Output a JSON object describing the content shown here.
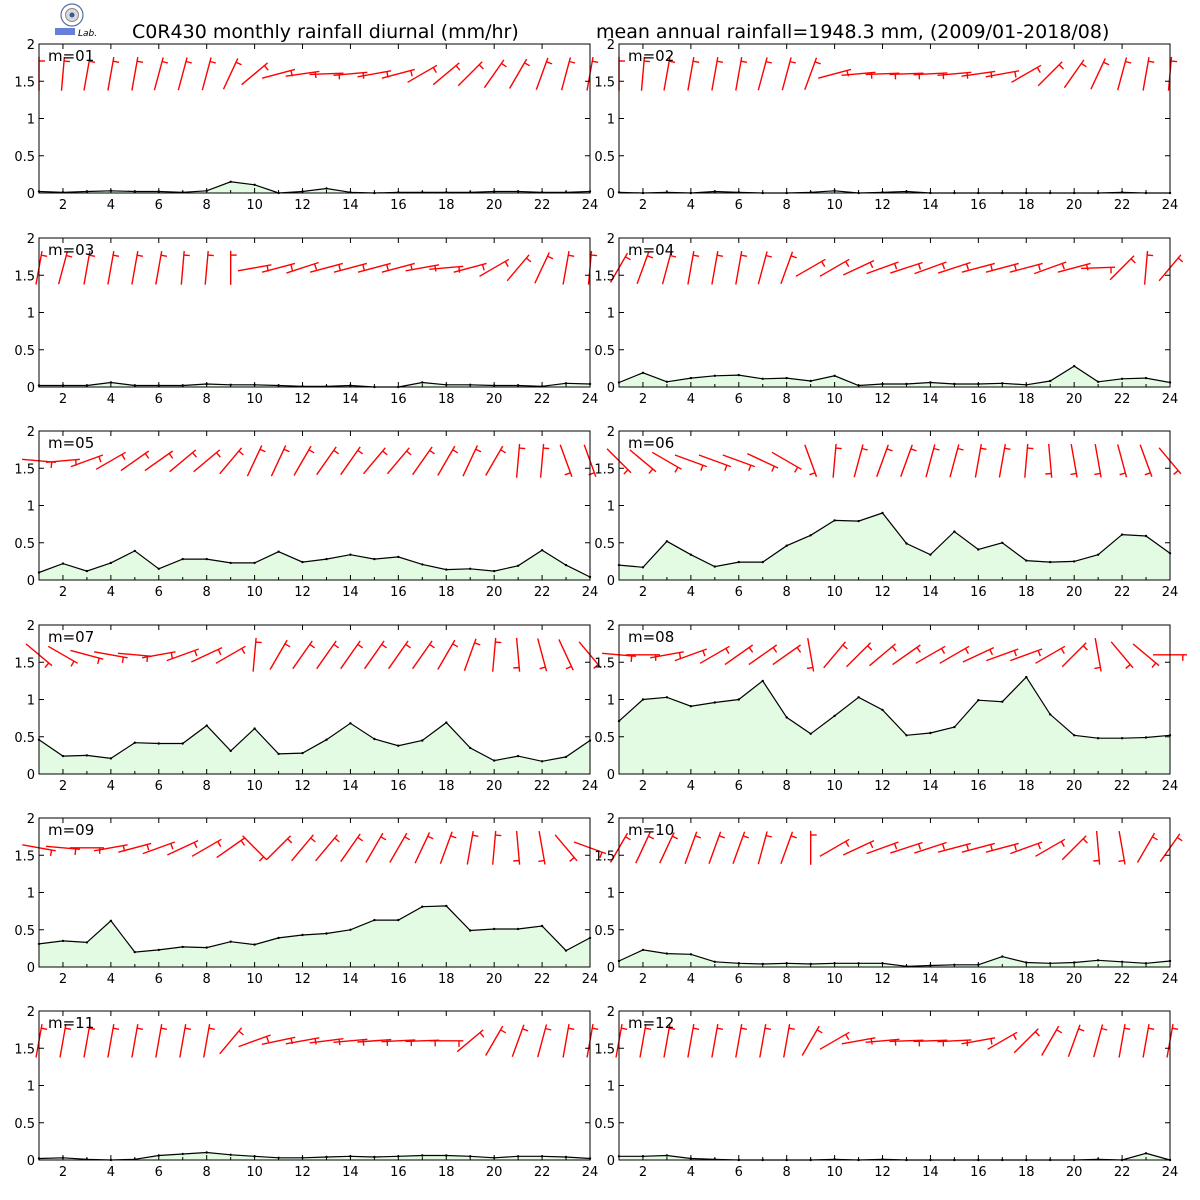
{
  "header": {
    "title_left": "C0R430 monthly rainfall diurnal (mm/hr)",
    "title_right": "mean annual rainfall=1948.3 mm, (2009/01-2018/08)"
  },
  "logo": {
    "name": "emblem-logo",
    "text": "Lab."
  },
  "colors": {
    "area_fill": "#e2fbe2",
    "line": "#000000",
    "wind_barbs": "#ff0000"
  },
  "chart_data": [
    {
      "type": "area",
      "label": "m=01",
      "xlim": [
        1,
        24
      ],
      "ylim": [
        0,
        2
      ],
      "x_ticks": [
        "2",
        "4",
        "6",
        "8",
        "10",
        "12",
        "14",
        "16",
        "18",
        "20",
        "22",
        "24"
      ],
      "y_ticks": [
        "0",
        "0.5",
        "1",
        "1.5",
        "2"
      ],
      "x": [
        1,
        2,
        3,
        4,
        5,
        6,
        7,
        8,
        9,
        10,
        11,
        12,
        13,
        14,
        15,
        16,
        17,
        18,
        19,
        20,
        21,
        22,
        23,
        24
      ],
      "values": [
        0.02,
        0.01,
        0.02,
        0.03,
        0.02,
        0.02,
        0.01,
        0.03,
        0.15,
        0.11,
        0.0,
        0.02,
        0.06,
        0.01,
        0.0,
        0.01,
        0.01,
        0.01,
        0.01,
        0.02,
        0.02,
        0.01,
        0.01,
        0.02
      ],
      "wind_dir": [
        0,
        5,
        10,
        10,
        10,
        15,
        15,
        15,
        25,
        50,
        75,
        82,
        88,
        85,
        80,
        75,
        60,
        50,
        45,
        35,
        30,
        20,
        15,
        10
      ]
    },
    {
      "type": "area",
      "label": "m=02",
      "xlim": [
        1,
        24
      ],
      "ylim": [
        0,
        2
      ],
      "x_ticks": [
        "2",
        "4",
        "6",
        "8",
        "10",
        "12",
        "14",
        "16",
        "18",
        "20",
        "22",
        "24"
      ],
      "y_ticks": [
        "0",
        "0.5",
        "1",
        "1.5",
        "2"
      ],
      "x": [
        1,
        2,
        3,
        4,
        5,
        6,
        7,
        8,
        9,
        10,
        11,
        12,
        13,
        14,
        15,
        16,
        17,
        18,
        19,
        20,
        21,
        22,
        23,
        24
      ],
      "values": [
        0.01,
        0.0,
        0.01,
        0.0,
        0.02,
        0.01,
        0.0,
        0.0,
        0.01,
        0.03,
        0.0,
        0.01,
        0.02,
        0.0,
        0.0,
        0.0,
        0.0,
        0.0,
        0.0,
        0.0,
        0.0,
        0.01,
        0.0,
        0.0
      ],
      "wind_dir": [
        0,
        5,
        10,
        10,
        10,
        10,
        15,
        15,
        20,
        75,
        85,
        88,
        88,
        87,
        85,
        82,
        80,
        60,
        45,
        35,
        25,
        15,
        10,
        5
      ]
    },
    {
      "type": "area",
      "label": "m=03",
      "xlim": [
        1,
        24
      ],
      "ylim": [
        0,
        2
      ],
      "x_ticks": [
        "2",
        "4",
        "6",
        "8",
        "10",
        "12",
        "14",
        "16",
        "18",
        "20",
        "22",
        "24"
      ],
      "y_ticks": [
        "0",
        "0.5",
        "1",
        "1.5",
        "2"
      ],
      "x": [
        1,
        2,
        3,
        4,
        5,
        6,
        7,
        8,
        9,
        10,
        11,
        12,
        13,
        14,
        15,
        16,
        17,
        18,
        19,
        20,
        21,
        22,
        23,
        24
      ],
      "values": [
        0.02,
        0.02,
        0.02,
        0.06,
        0.02,
        0.02,
        0.02,
        0.04,
        0.03,
        0.03,
        0.02,
        0.01,
        0.01,
        0.02,
        0.0,
        0.0,
        0.06,
        0.03,
        0.03,
        0.02,
        0.02,
        0.01,
        0.05,
        0.04
      ],
      "wind_dir": [
        10,
        15,
        10,
        10,
        10,
        10,
        5,
        5,
        0,
        80,
        75,
        72,
        75,
        75,
        75,
        75,
        80,
        85,
        75,
        60,
        40,
        25,
        10,
        5
      ]
    },
    {
      "type": "area",
      "label": "m=04",
      "xlim": [
        1,
        24
      ],
      "ylim": [
        0,
        2
      ],
      "x_ticks": [
        "2",
        "4",
        "6",
        "8",
        "10",
        "12",
        "14",
        "16",
        "18",
        "20",
        "22",
        "24"
      ],
      "y_ticks": [
        "0",
        "0.5",
        "1",
        "1.5",
        "2"
      ],
      "x": [
        1,
        2,
        3,
        4,
        5,
        6,
        7,
        8,
        9,
        10,
        11,
        12,
        13,
        14,
        15,
        16,
        17,
        18,
        19,
        20,
        21,
        22,
        23,
        24
      ],
      "values": [
        0.06,
        0.19,
        0.07,
        0.12,
        0.15,
        0.16,
        0.11,
        0.12,
        0.08,
        0.15,
        0.02,
        0.04,
        0.04,
        0.06,
        0.04,
        0.04,
        0.05,
        0.03,
        0.08,
        0.28,
        0.07,
        0.11,
        0.12,
        0.06
      ],
      "wind_dir": [
        30,
        20,
        15,
        10,
        10,
        10,
        15,
        20,
        60,
        60,
        65,
        70,
        72,
        70,
        72,
        75,
        75,
        75,
        70,
        75,
        88,
        45,
        5,
        40
      ]
    },
    {
      "type": "area",
      "label": "m=05",
      "xlim": [
        1,
        24
      ],
      "ylim": [
        0,
        2
      ],
      "x_ticks": [
        "2",
        "4",
        "6",
        "8",
        "10",
        "12",
        "14",
        "16",
        "18",
        "20",
        "22",
        "24"
      ],
      "y_ticks": [
        "0",
        "0.5",
        "1",
        "1.5",
        "2"
      ],
      "x": [
        1,
        2,
        3,
        4,
        5,
        6,
        7,
        8,
        9,
        10,
        11,
        12,
        13,
        14,
        15,
        16,
        17,
        18,
        19,
        20,
        21,
        22,
        23,
        24
      ],
      "values": [
        0.1,
        0.22,
        0.12,
        0.23,
        0.39,
        0.15,
        0.28,
        0.28,
        0.23,
        0.23,
        0.38,
        0.24,
        0.28,
        0.34,
        0.28,
        0.31,
        0.21,
        0.14,
        0.15,
        0.12,
        0.19,
        0.4,
        0.2,
        0.04
      ],
      "wind_dir": [
        95,
        85,
        70,
        60,
        55,
        55,
        50,
        50,
        40,
        25,
        25,
        30,
        35,
        35,
        40,
        40,
        35,
        30,
        25,
        30,
        5,
        5,
        160,
        160
      ]
    },
    {
      "type": "area",
      "label": "m=06",
      "xlim": [
        1,
        24
      ],
      "ylim": [
        0,
        2
      ],
      "x_ticks": [
        "2",
        "4",
        "6",
        "8",
        "10",
        "12",
        "14",
        "16",
        "18",
        "20",
        "22",
        "24"
      ],
      "y_ticks": [
        "0",
        "0.5",
        "1",
        "1.5",
        "2"
      ],
      "x": [
        1,
        2,
        3,
        4,
        5,
        6,
        7,
        8,
        9,
        10,
        11,
        12,
        13,
        14,
        15,
        16,
        17,
        18,
        19,
        20,
        21,
        22,
        23,
        24
      ],
      "values": [
        0.2,
        0.17,
        0.52,
        0.34,
        0.18,
        0.24,
        0.24,
        0.46,
        0.6,
        0.8,
        0.79,
        0.9,
        0.49,
        0.34,
        0.65,
        0.41,
        0.5,
        0.26,
        0.24,
        0.25,
        0.34,
        0.61,
        0.59,
        0.36
      ],
      "wind_dir": [
        135,
        130,
        120,
        110,
        110,
        110,
        115,
        120,
        160,
        5,
        15,
        20,
        20,
        15,
        15,
        10,
        10,
        5,
        175,
        170,
        170,
        165,
        160,
        140
      ]
    },
    {
      "type": "area",
      "label": "m=07",
      "xlim": [
        1,
        24
      ],
      "ylim": [
        0,
        2
      ],
      "x_ticks": [
        "2",
        "4",
        "6",
        "8",
        "10",
        "12",
        "14",
        "16",
        "18",
        "20",
        "22",
        "24"
      ],
      "y_ticks": [
        "0",
        "0.5",
        "1",
        "1.5",
        "2"
      ],
      "x": [
        1,
        2,
        3,
        4,
        5,
        6,
        7,
        8,
        9,
        10,
        11,
        12,
        13,
        14,
        15,
        16,
        17,
        18,
        19,
        20,
        21,
        22,
        23,
        24
      ],
      "values": [
        0.46,
        0.24,
        0.25,
        0.21,
        0.42,
        0.41,
        0.41,
        0.65,
        0.31,
        0.61,
        0.27,
        0.28,
        0.46,
        0.68,
        0.47,
        0.38,
        0.45,
        0.69,
        0.35,
        0.18,
        0.24,
        0.17,
        0.23,
        0.45
      ],
      "wind_dir": [
        130,
        120,
        105,
        100,
        95,
        80,
        70,
        65,
        60,
        5,
        30,
        35,
        35,
        35,
        35,
        35,
        35,
        30,
        20,
        5,
        175,
        165,
        155,
        140
      ]
    },
    {
      "type": "area",
      "label": "m=08",
      "xlim": [
        1,
        24
      ],
      "ylim": [
        0,
        2
      ],
      "x_ticks": [
        "2",
        "4",
        "6",
        "8",
        "10",
        "12",
        "14",
        "16",
        "18",
        "20",
        "22",
        "24"
      ],
      "y_ticks": [
        "0",
        "0.5",
        "1",
        "1.5",
        "2"
      ],
      "x": [
        1,
        2,
        3,
        4,
        5,
        6,
        7,
        8,
        9,
        10,
        11,
        12,
        13,
        14,
        15,
        16,
        17,
        18,
        19,
        20,
        21,
        22,
        23,
        24
      ],
      "values": [
        0.71,
        1.0,
        1.03,
        0.91,
        0.96,
        1.0,
        1.25,
        0.76,
        0.54,
        0.78,
        1.03,
        0.86,
        0.52,
        0.55,
        0.63,
        0.99,
        0.97,
        1.3,
        0.8,
        0.52,
        0.48,
        0.48,
        0.49,
        0.52
      ],
      "wind_dir": [
        95,
        90,
        80,
        70,
        60,
        55,
        55,
        55,
        170,
        40,
        45,
        50,
        55,
        60,
        60,
        65,
        70,
        70,
        60,
        45,
        170,
        140,
        130,
        90
      ]
    },
    {
      "type": "area",
      "label": "m=09",
      "xlim": [
        1,
        24
      ],
      "ylim": [
        0,
        2
      ],
      "x_ticks": [
        "2",
        "4",
        "6",
        "8",
        "10",
        "12",
        "14",
        "16",
        "18",
        "20",
        "22",
        "24"
      ],
      "y_ticks": [
        "0",
        "0.5",
        "1",
        "1.5",
        "2"
      ],
      "x": [
        1,
        2,
        3,
        4,
        5,
        6,
        7,
        8,
        9,
        10,
        11,
        12,
        13,
        14,
        15,
        16,
        17,
        18,
        19,
        20,
        21,
        22,
        23,
        24
      ],
      "values": [
        0.31,
        0.35,
        0.33,
        0.62,
        0.2,
        0.23,
        0.27,
        0.26,
        0.34,
        0.3,
        0.39,
        0.43,
        0.45,
        0.5,
        0.63,
        0.63,
        0.81,
        0.82,
        0.49,
        0.51,
        0.51,
        0.55,
        0.22,
        0.39
      ],
      "wind_dir": [
        100,
        95,
        90,
        80,
        75,
        70,
        65,
        60,
        55,
        135,
        45,
        40,
        40,
        35,
        30,
        30,
        25,
        20,
        10,
        5,
        175,
        170,
        140,
        110
      ]
    },
    {
      "type": "area",
      "label": "m=10",
      "xlim": [
        1,
        24
      ],
      "ylim": [
        0,
        2
      ],
      "x_ticks": [
        "2",
        "4",
        "6",
        "8",
        "10",
        "12",
        "14",
        "16",
        "18",
        "20",
        "22",
        "24"
      ],
      "y_ticks": [
        "0",
        "0.5",
        "1",
        "1.5",
        "2"
      ],
      "x": [
        1,
        2,
        3,
        4,
        5,
        6,
        7,
        8,
        9,
        10,
        11,
        12,
        13,
        14,
        15,
        16,
        17,
        18,
        19,
        20,
        21,
        22,
        23,
        24
      ],
      "values": [
        0.08,
        0.23,
        0.18,
        0.17,
        0.07,
        0.05,
        0.04,
        0.05,
        0.04,
        0.05,
        0.05,
        0.05,
        0.01,
        0.02,
        0.03,
        0.03,
        0.14,
        0.06,
        0.05,
        0.06,
        0.09,
        0.07,
        0.05,
        0.08
      ],
      "wind_dir": [
        30,
        25,
        25,
        20,
        20,
        20,
        15,
        20,
        0,
        60,
        65,
        70,
        72,
        72,
        75,
        75,
        75,
        70,
        60,
        45,
        175,
        170,
        30,
        35
      ]
    },
    {
      "type": "area",
      "label": "m=11",
      "xlim": [
        1,
        24
      ],
      "ylim": [
        0,
        2
      ],
      "x_ticks": [
        "2",
        "4",
        "6",
        "8",
        "10",
        "12",
        "14",
        "16",
        "18",
        "20",
        "22",
        "24"
      ],
      "y_ticks": [
        "0",
        "0.5",
        "1",
        "1.5",
        "2"
      ],
      "x": [
        1,
        2,
        3,
        4,
        5,
        6,
        7,
        8,
        9,
        10,
        11,
        12,
        13,
        14,
        15,
        16,
        17,
        18,
        19,
        20,
        21,
        22,
        23,
        24
      ],
      "values": [
        0.02,
        0.03,
        0.01,
        0.0,
        0.01,
        0.06,
        0.08,
        0.1,
        0.07,
        0.05,
        0.03,
        0.03,
        0.04,
        0.05,
        0.04,
        0.05,
        0.06,
        0.06,
        0.05,
        0.03,
        0.05,
        0.05,
        0.04,
        0.02
      ],
      "wind_dir": [
        10,
        10,
        10,
        10,
        10,
        10,
        10,
        10,
        40,
        70,
        78,
        80,
        83,
        85,
        86,
        87,
        88,
        90,
        50,
        30,
        20,
        15,
        10,
        10
      ]
    },
    {
      "type": "area",
      "label": "m=12",
      "xlim": [
        1,
        24
      ],
      "ylim": [
        0,
        2
      ],
      "x_ticks": [
        "2",
        "4",
        "6",
        "8",
        "10",
        "12",
        "14",
        "16",
        "18",
        "20",
        "22",
        "24"
      ],
      "y_ticks": [
        "0",
        "0.5",
        "1",
        "1.5",
        "2"
      ],
      "x": [
        1,
        2,
        3,
        4,
        5,
        6,
        7,
        8,
        9,
        10,
        11,
        12,
        13,
        14,
        15,
        16,
        17,
        18,
        19,
        20,
        21,
        22,
        23,
        24
      ],
      "values": [
        0.05,
        0.05,
        0.06,
        0.02,
        0.01,
        0.0,
        0.0,
        0.0,
        0.0,
        0.01,
        0.0,
        0.01,
        0.0,
        0.0,
        0.0,
        0.0,
        0.0,
        0.0,
        0.0,
        0.0,
        0.01,
        0.0,
        0.09,
        0.0
      ],
      "wind_dir": [
        10,
        10,
        10,
        10,
        10,
        10,
        10,
        10,
        30,
        60,
        80,
        85,
        88,
        88,
        87,
        80,
        60,
        45,
        30,
        20,
        15,
        10,
        10,
        10
      ]
    }
  ]
}
